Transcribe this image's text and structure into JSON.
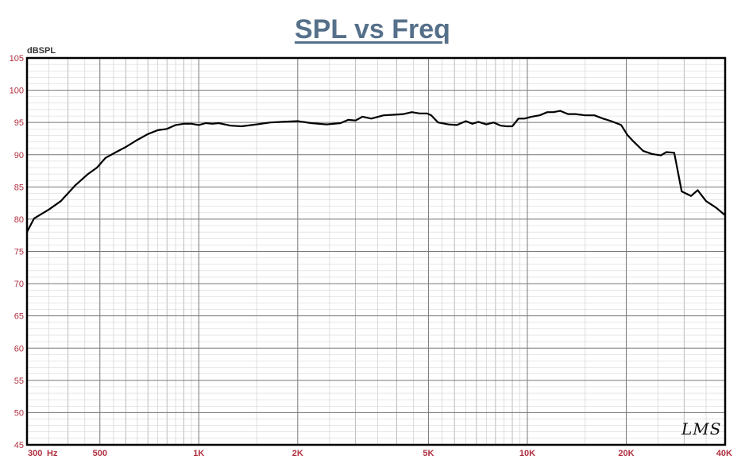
{
  "chart_data": {
    "type": "line",
    "title": "SPL vs Freq",
    "ylabel": "dBSPL",
    "xlabel": "",
    "x_scale": "log",
    "xlim": [
      300,
      40000
    ],
    "ylim": [
      45,
      105
    ],
    "grid": true,
    "yticks": [
      45,
      50,
      55,
      60,
      65,
      70,
      75,
      80,
      85,
      90,
      95,
      100,
      105
    ],
    "xticks": [
      {
        "value": 300,
        "label": "300"
      },
      {
        "value": 500,
        "label": "500"
      },
      {
        "value": 1000,
        "label": "1K"
      },
      {
        "value": 2000,
        "label": "2K"
      },
      {
        "value": 5000,
        "label": "5K"
      },
      {
        "value": 10000,
        "label": "10K"
      },
      {
        "value": 20000,
        "label": "20K"
      },
      {
        "value": 40000,
        "label": "40K"
      }
    ],
    "x_unit_label": "Hz",
    "line_color": "#000000",
    "series": [
      {
        "x": [
          300,
          315,
          350,
          380,
          420,
          460,
          490,
          520,
          560,
          600,
          650,
          700,
          750,
          800,
          850,
          900,
          950,
          1000,
          1050,
          1100,
          1150,
          1250,
          1350,
          1500,
          1650,
          1800,
          2000,
          2200,
          2450,
          2700,
          2850,
          3000,
          3150,
          3350,
          3650,
          3950,
          4200,
          4450,
          4700,
          4950,
          5100,
          5350,
          5750,
          6100,
          6500,
          6800,
          7100,
          7500,
          7900,
          8300,
          8650,
          9000,
          9400,
          9800,
          10300,
          10900,
          11500,
          12000,
          12600,
          13300,
          14000,
          15000,
          16000,
          17000,
          18000,
          19300,
          20200,
          21000,
          22500,
          24000,
          25500,
          26500,
          28000,
          29500,
          31500,
          33000,
          35000,
          37500,
          40000
        ],
        "y": [
          78,
          80.1,
          81.5,
          82.8,
          85.2,
          87,
          88,
          89.5,
          90.4,
          91.2,
          92.3,
          93.2,
          93.8,
          94,
          94.6,
          94.8,
          94.8,
          94.6,
          94.9,
          94.8,
          94.9,
          94.5,
          94.4,
          94.7,
          95,
          95.1,
          95.2,
          94.9,
          94.7,
          94.9,
          95.4,
          95.3,
          95.9,
          95.6,
          96.1,
          96.2,
          96.3,
          96.6,
          96.4,
          96.4,
          96.1,
          95,
          94.7,
          94.6,
          95.2,
          94.8,
          95.1,
          94.7,
          95,
          94.5,
          94.4,
          94.4,
          95.6,
          95.6,
          95.9,
          96.1,
          96.6,
          96.6,
          96.8,
          96.3,
          96.3,
          96.1,
          96.1,
          95.6,
          95.2,
          94.6,
          93,
          92.1,
          90.6,
          90.1,
          89.9,
          90.4,
          90.3,
          84.3,
          83.6,
          84.5,
          82.8,
          81.8,
          80.6
        ]
      }
    ],
    "watermark": "LMS"
  }
}
